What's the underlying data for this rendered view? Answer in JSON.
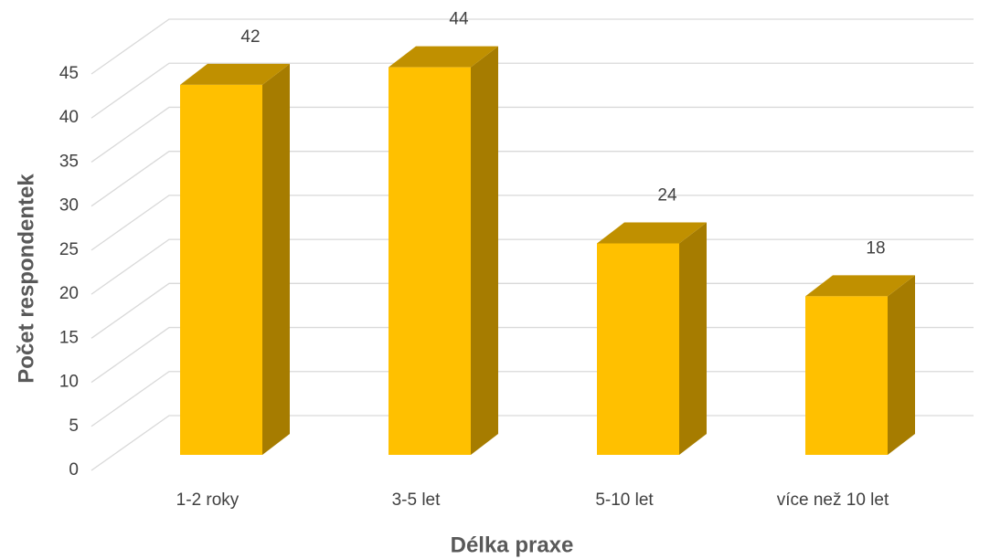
{
  "chart_data": {
    "type": "bar3d",
    "x_label": "Délka praxe",
    "y_label": "Počet respondentek",
    "categories": [
      "1-2 roky",
      "3-5 let",
      "5-10 let",
      "více než 10 let"
    ],
    "values": [
      42,
      44,
      24,
      18
    ],
    "color": "#ffc000",
    "ylim": [
      0,
      45
    ],
    "yticks": [
      0,
      5,
      10,
      15,
      20,
      25,
      30,
      35,
      40,
      45
    ],
    "grid": true
  }
}
